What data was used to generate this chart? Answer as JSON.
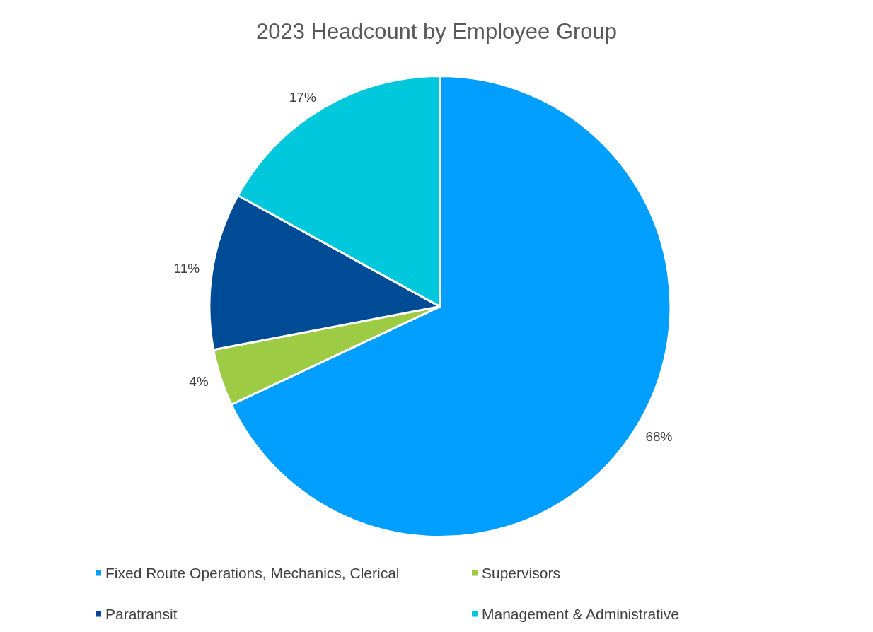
{
  "chart_data": {
    "type": "pie",
    "title": "2023 Headcount by Employee Group",
    "categories": [
      "Fixed Route Operations, Mechanics, Clerical",
      "Supervisors",
      "Paratransit",
      "Management & Administrative"
    ],
    "values": [
      68,
      4,
      11,
      17
    ],
    "value_labels": [
      "68%",
      "4%",
      "11%",
      "17%"
    ],
    "colors": [
      "#009fff",
      "#9dcb43",
      "#004b96",
      "#00c8dc"
    ],
    "legend": "bottom"
  }
}
